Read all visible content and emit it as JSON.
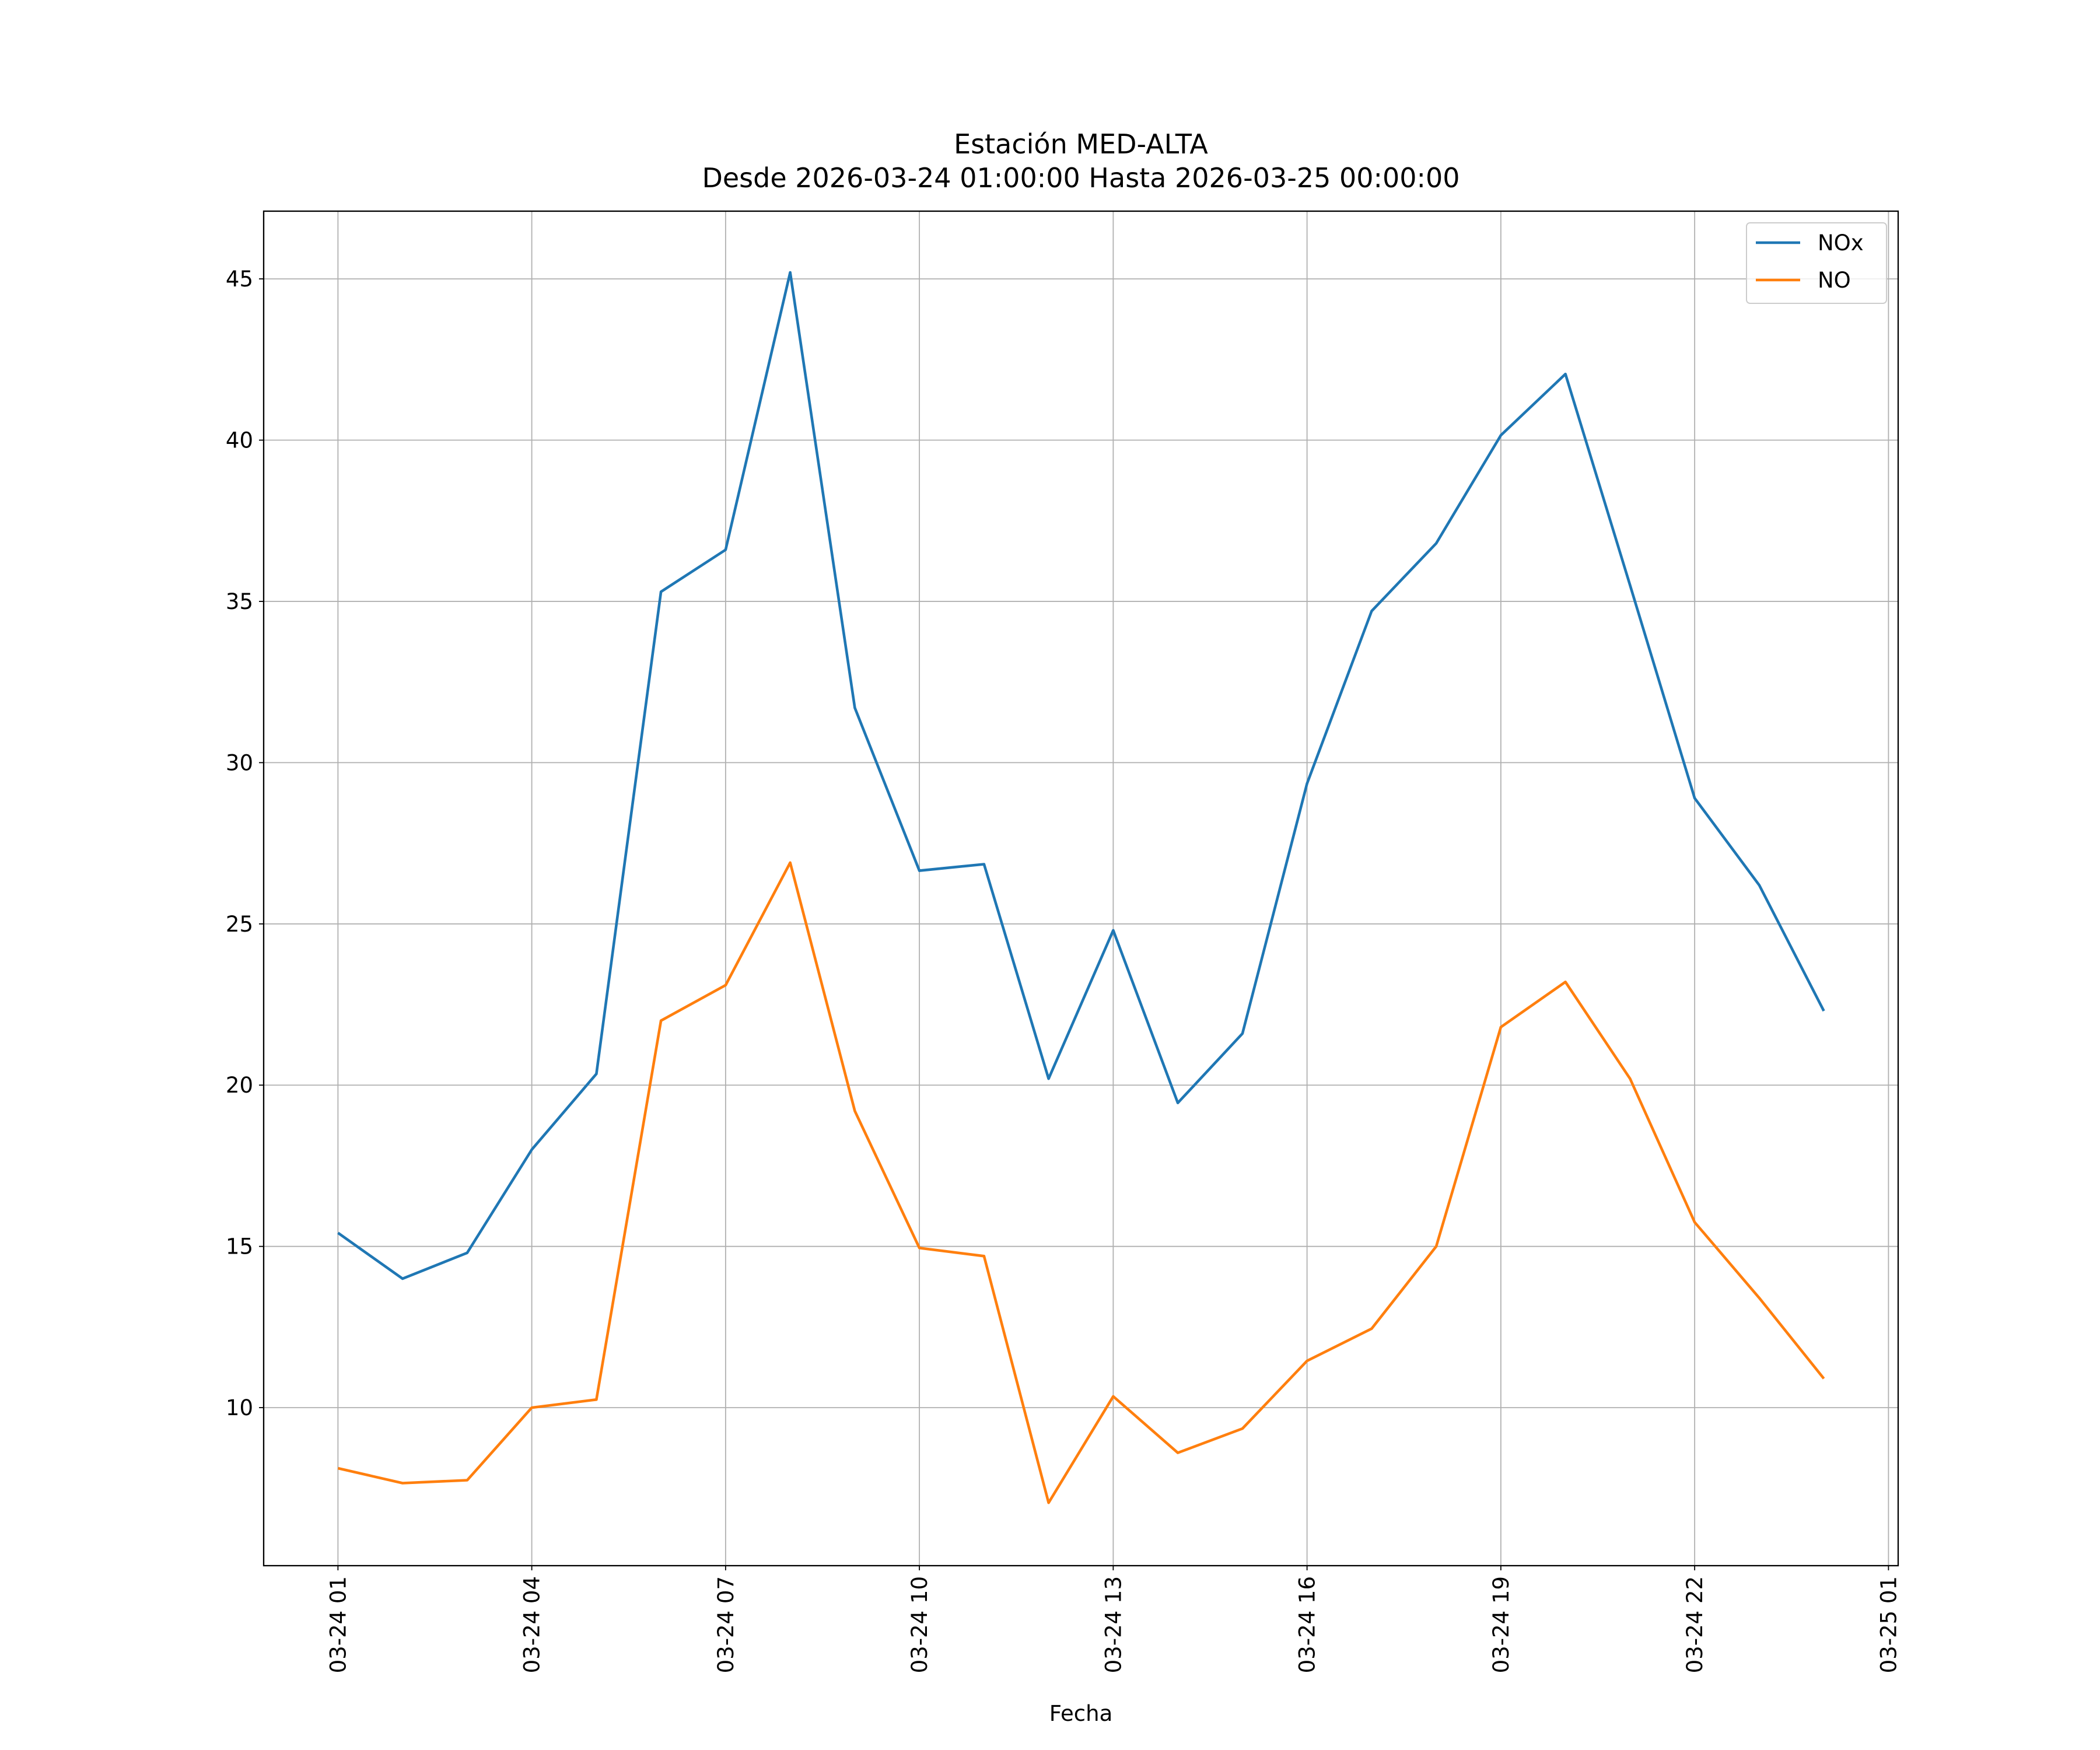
{
  "chart_data": {
    "type": "line",
    "title": "Estación MED-ALTA",
    "subtitle": "Desde 2026-03-24 01:00:00 Hasta 2026-03-25 00:00:00",
    "x_label": "Fecha",
    "x": [
      "03-24 01",
      "03-24 02",
      "03-24 03",
      "03-24 04",
      "03-24 05",
      "03-24 06",
      "03-24 07",
      "03-24 08",
      "03-24 09",
      "03-24 10",
      "03-24 11",
      "03-24 12",
      "03-24 13",
      "03-24 14",
      "03-24 15",
      "03-24 16",
      "03-24 17",
      "03-24 18",
      "03-24 19",
      "03-24 20",
      "03-24 21",
      "03-24 22",
      "03-24 23",
      "03-25 00"
    ],
    "xticks": [
      "03-24 01",
      "03-24 04",
      "03-24 07",
      "03-24 10",
      "03-24 13",
      "03-24 16",
      "03-24 19",
      "03-24 22",
      "03-25 01"
    ],
    "ylim": [
      5.1,
      47.1
    ],
    "yticks": [
      10,
      15,
      20,
      25,
      30,
      35,
      40,
      45
    ],
    "grid": true,
    "legend": "upper right",
    "series": [
      {
        "name": "NOx",
        "color": "#1f77b4",
        "values": [
          15.42,
          14.0,
          14.8,
          18.0,
          20.35,
          35.3,
          36.6,
          45.2,
          31.7,
          26.65,
          26.85,
          20.2,
          24.8,
          19.45,
          21.6,
          29.35,
          34.7,
          36.8,
          40.15,
          42.05,
          35.5,
          28.9,
          26.2,
          22.3
        ]
      },
      {
        "name": "NO",
        "color": "#ff7f0e",
        "values": [
          8.12,
          7.66,
          7.75,
          10.0,
          10.25,
          22.0,
          23.1,
          26.9,
          19.2,
          14.95,
          14.7,
          7.05,
          10.35,
          8.6,
          9.35,
          11.45,
          12.45,
          15.0,
          21.8,
          23.2,
          20.2,
          15.75,
          13.4,
          10.9
        ]
      }
    ]
  }
}
